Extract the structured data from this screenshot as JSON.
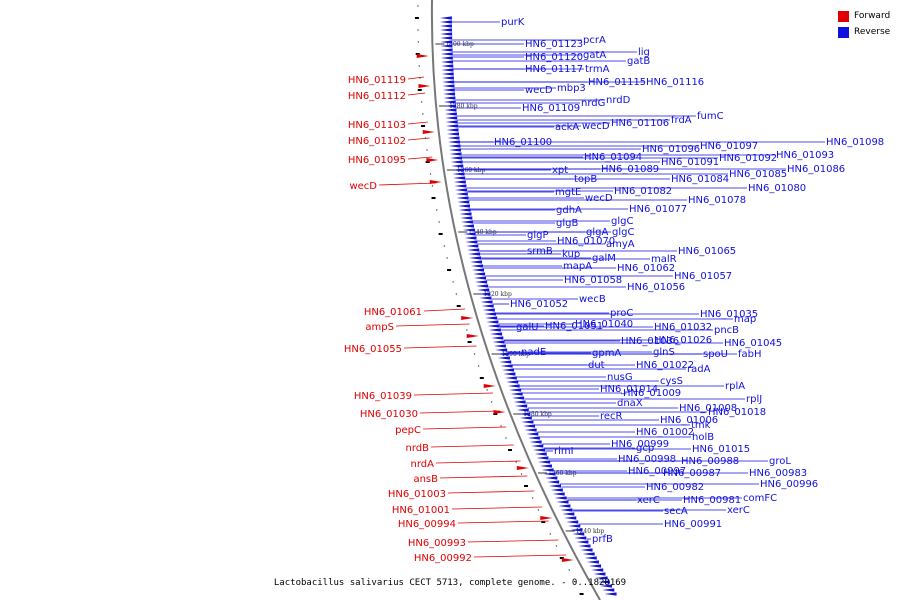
{
  "colors": {
    "forward": "#e00000",
    "reverse": "#1010e0",
    "backbone": "#777777",
    "tick": "#000000"
  },
  "legend": [
    {
      "label": "Forward",
      "color": "#e00000"
    },
    {
      "label": "Reverse",
      "color": "#1010e0"
    }
  ],
  "caption": "Lactobacillus salivarius CECT 5713, complete genome. - 0..1828169",
  "scale_ticks": [
    "1400 kbp",
    "1380 kbp",
    "1360 kbp",
    "1340 kbp",
    "1320 kbp",
    "1300 kbp",
    "1280 kbp",
    "1260 kbp",
    "1240 kbp"
  ],
  "forward_labels": [
    "HN6_01119",
    "HN6_01112",
    "HN6_01103",
    "HN6_01102",
    "HN6_01095",
    "wecD",
    "HN6_01061",
    "ampS",
    "HN6_01055",
    "HN6_01039",
    "HN6_01030",
    "pepC",
    "nrdB",
    "nrdA",
    "ansB",
    "HN6_01003",
    "HN6_01001",
    "HN6_00994",
    "HN6_00993",
    "HN6_00992"
  ],
  "reverse_labels": [
    "purK",
    "HN6_01123",
    "pcrA",
    "lig",
    "HN6_01120",
    "gatA",
    "gatB",
    "HN6_01117",
    "trmA",
    "HN6_01115",
    "HN6_01116",
    "wecD",
    "mbp3",
    "HN6_01109",
    "nrdG",
    "nrdD",
    "fumC",
    "frdA",
    "HN6_01106",
    "ackA",
    "wecD",
    "HN6_01100",
    "HN6_01098",
    "HN6_01097",
    "HN6_01096",
    "HN6_01094",
    "HN6_01093",
    "HN6_01092",
    "HN6_01091",
    "xpt",
    "HN6_01089",
    "HN6_01086",
    "HN6_01085",
    "topB",
    "HN6_01084",
    "HN6_01082",
    "HN6_01080",
    "mgtE",
    "wecD",
    "HN6_01078",
    "HN6_01077",
    "gdhA",
    "glgC",
    "glgB",
    "glgC",
    "glgA",
    "glgP",
    "HN6_01070",
    "amyA",
    "srmB",
    "HN6_01065",
    "kup",
    "galM",
    "malR",
    "mapA",
    "HN6_01062",
    "HN6_01058",
    "HN6_01057",
    "HN6_01056",
    "wecB",
    "HN6_01052",
    "proC",
    "HN6_01035",
    "map",
    "galU",
    "HN6_01051",
    "HN6_01040",
    "HN6_01032",
    "pncB",
    "HN6_01036",
    "HN6_01026",
    "HN6_01045",
    "nadE",
    "gpmA",
    "glnS",
    "spoU",
    "fabH",
    "dut",
    "HN6_01022",
    "radA",
    "nusG",
    "cysS",
    "HN6_01014",
    "rplA",
    "HN6_01009",
    "rplJ",
    "dnaX",
    "HN6_01008",
    "HN6_01018",
    "recR",
    "HN6_01006",
    "tmk",
    "HN6_01002",
    "holB",
    "HN6_00999",
    "HN6_01015",
    "rimI",
    "gcp",
    "HN6_00998",
    "HN6_00988",
    "groL",
    "HN6_00997",
    "HN6_00987",
    "HN6_00983",
    "HN6_00996",
    "HN6_00982",
    "comFC",
    "xerC",
    "HN6_00981",
    "xerC",
    "secA",
    "HN6_00991",
    "prfB"
  ]
}
